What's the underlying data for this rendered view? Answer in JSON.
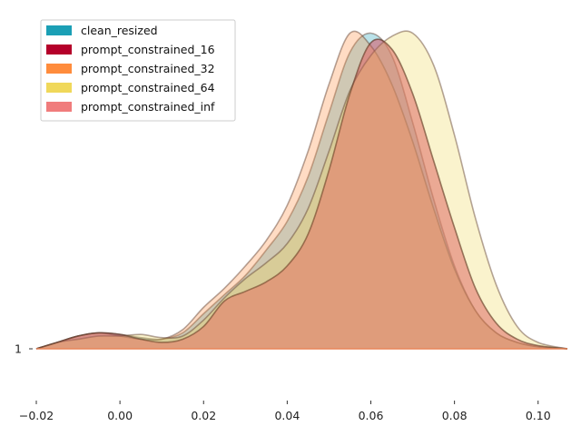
{
  "chart_data": {
    "type": "area",
    "title": "",
    "xlabel": "",
    "ylabel": "",
    "xlim": [
      -0.02,
      0.107
    ],
    "ylim": [
      0,
      1
    ],
    "grid": false,
    "legend_position": "top-left",
    "y_tick_labels": [
      "1"
    ],
    "x_ticks": [
      -0.02,
      0.0,
      0.02,
      0.04,
      0.06,
      0.08,
      0.1
    ],
    "x_tick_labels": [
      "−0.02",
      "0.00",
      "0.02",
      "0.04",
      "0.06",
      "0.08",
      "0.10"
    ],
    "x": [
      -0.02,
      -0.015,
      -0.01,
      -0.005,
      0.0,
      0.005,
      0.01,
      0.015,
      0.02,
      0.025,
      0.03,
      0.035,
      0.04,
      0.045,
      0.05,
      0.055,
      0.06,
      0.065,
      0.07,
      0.075,
      0.08,
      0.085,
      0.09,
      0.095,
      0.1,
      0.107
    ],
    "series": [
      {
        "name": "clean_resized",
        "color": "#1b9fb5",
        "values": [
          0.0,
          0.02,
          0.04,
          0.05,
          0.045,
          0.035,
          0.03,
          0.05,
          0.11,
          0.17,
          0.23,
          0.31,
          0.4,
          0.54,
          0.74,
          0.93,
          0.99,
          0.92,
          0.71,
          0.47,
          0.26,
          0.12,
          0.05,
          0.02,
          0.007,
          0.0
        ]
      },
      {
        "name": "prompt_constrained_16",
        "color": "#b5002a",
        "values": [
          0.0,
          0.02,
          0.04,
          0.05,
          0.045,
          0.03,
          0.02,
          0.03,
          0.07,
          0.15,
          0.18,
          0.21,
          0.26,
          0.36,
          0.56,
          0.8,
          0.96,
          0.94,
          0.8,
          0.59,
          0.38,
          0.19,
          0.08,
          0.03,
          0.01,
          0.0
        ]
      },
      {
        "name": "prompt_constrained_32",
        "color": "#ff8c3c",
        "values": [
          0.0,
          0.02,
          0.04,
          0.05,
          0.04,
          0.03,
          0.03,
          0.06,
          0.13,
          0.19,
          0.26,
          0.34,
          0.45,
          0.62,
          0.83,
          0.99,
          0.95,
          0.83,
          0.65,
          0.44,
          0.25,
          0.12,
          0.05,
          0.02,
          0.006,
          0.0
        ]
      },
      {
        "name": "prompt_constrained_64",
        "color": "#f0d85a",
        "values": [
          0.0,
          0.02,
          0.03,
          0.04,
          0.04,
          0.045,
          0.035,
          0.04,
          0.09,
          0.16,
          0.22,
          0.27,
          0.33,
          0.44,
          0.62,
          0.81,
          0.92,
          0.98,
          0.99,
          0.89,
          0.67,
          0.41,
          0.2,
          0.07,
          0.02,
          0.0
        ]
      },
      {
        "name": "prompt_constrained_inf",
        "color": "#f07c7c",
        "values": [
          0.0,
          0.02,
          0.04,
          0.05,
          0.045,
          0.03,
          0.02,
          0.03,
          0.07,
          0.15,
          0.18,
          0.21,
          0.26,
          0.36,
          0.56,
          0.8,
          0.96,
          0.94,
          0.8,
          0.59,
          0.38,
          0.19,
          0.08,
          0.03,
          0.01,
          0.0
        ]
      }
    ]
  }
}
